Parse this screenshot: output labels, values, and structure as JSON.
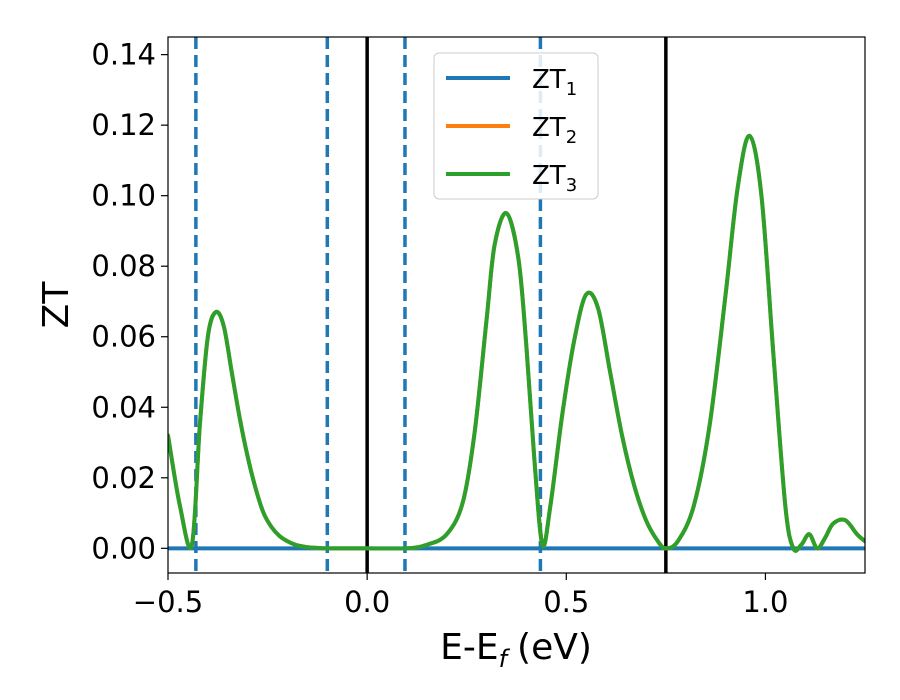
{
  "chart_data": {
    "type": "line",
    "xlabel": "E-E",
    "xlabel_sub": "f",
    "xlabel_unit": "(eV)",
    "ylabel": "ZT",
    "xlim": [
      -0.5,
      1.25
    ],
    "ylim": [
      -0.007,
      0.145
    ],
    "x_ticks": [
      -0.5,
      0.0,
      0.5,
      1.0
    ],
    "x_tick_labels": [
      "−0.5",
      "0.0",
      "0.5",
      "1.0"
    ],
    "y_ticks": [
      0.0,
      0.02,
      0.04,
      0.06,
      0.08,
      0.1,
      0.12,
      0.14
    ],
    "y_tick_labels": [
      "0.00",
      "0.02",
      "0.04",
      "0.06",
      "0.08",
      "0.10",
      "0.12",
      "0.14"
    ],
    "grid": false,
    "legend_position": "top-center",
    "series": [
      {
        "name": "ZT",
        "name_sub": "1",
        "color": "#1f77b4",
        "x": [
          -0.5,
          1.25
        ],
        "y": [
          0.0,
          0.0
        ]
      },
      {
        "name": "ZT",
        "name_sub": "2",
        "color": "#ff7f0e",
        "x": [
          -0.5,
          -0.47,
          -0.44,
          -0.42,
          -0.4,
          -0.38,
          -0.36,
          -0.34,
          -0.32,
          -0.3,
          -0.28,
          -0.26,
          -0.24,
          -0.22,
          -0.2,
          -0.18,
          -0.16,
          -0.14,
          -0.12,
          -0.1,
          0.0,
          0.1,
          0.15,
          0.2,
          0.24,
          0.27,
          0.3,
          0.32,
          0.35,
          0.38,
          0.4,
          0.42,
          0.44,
          0.46,
          0.49,
          0.52,
          0.55,
          0.58,
          0.61,
          0.64,
          0.67,
          0.7,
          0.73,
          0.75,
          0.78,
          0.82,
          0.86,
          0.9,
          0.93,
          0.96,
          0.99,
          1.02,
          1.05,
          1.07,
          1.09,
          1.11,
          1.13,
          1.15,
          1.17,
          1.2,
          1.23,
          1.25
        ],
        "y": [
          0.032,
          0.012,
          0.001,
          0.035,
          0.06,
          0.067,
          0.063,
          0.05,
          0.037,
          0.026,
          0.017,
          0.01,
          0.006,
          0.0035,
          0.002,
          0.001,
          0.0005,
          0.0002,
          0.0001,
          0.0,
          0.0,
          0.0,
          0.001,
          0.004,
          0.013,
          0.033,
          0.065,
          0.086,
          0.095,
          0.082,
          0.057,
          0.025,
          0.001,
          0.012,
          0.038,
          0.059,
          0.072,
          0.068,
          0.05,
          0.032,
          0.018,
          0.008,
          0.002,
          0.0,
          0.002,
          0.012,
          0.035,
          0.072,
          0.102,
          0.117,
          0.1,
          0.055,
          0.012,
          0.0,
          0.001,
          0.004,
          0.0,
          0.003,
          0.007,
          0.008,
          0.004,
          0.002
        ]
      },
      {
        "name": "ZT",
        "name_sub": "3",
        "color": "#2ca02c",
        "x": [
          -0.5,
          -0.47,
          -0.44,
          -0.42,
          -0.4,
          -0.38,
          -0.36,
          -0.34,
          -0.32,
          -0.3,
          -0.28,
          -0.26,
          -0.24,
          -0.22,
          -0.2,
          -0.18,
          -0.16,
          -0.14,
          -0.12,
          -0.1,
          0.0,
          0.1,
          0.15,
          0.2,
          0.24,
          0.27,
          0.3,
          0.32,
          0.35,
          0.38,
          0.4,
          0.42,
          0.44,
          0.46,
          0.49,
          0.52,
          0.55,
          0.58,
          0.61,
          0.64,
          0.67,
          0.7,
          0.73,
          0.75,
          0.78,
          0.82,
          0.86,
          0.9,
          0.93,
          0.96,
          0.99,
          1.02,
          1.05,
          1.07,
          1.09,
          1.11,
          1.13,
          1.15,
          1.17,
          1.2,
          1.23,
          1.25
        ],
        "y": [
          0.032,
          0.012,
          0.001,
          0.035,
          0.06,
          0.067,
          0.063,
          0.05,
          0.037,
          0.026,
          0.017,
          0.01,
          0.006,
          0.0035,
          0.002,
          0.001,
          0.0005,
          0.0002,
          0.0001,
          0.0,
          0.0,
          0.0,
          0.001,
          0.004,
          0.013,
          0.033,
          0.065,
          0.086,
          0.095,
          0.082,
          0.057,
          0.025,
          0.001,
          0.012,
          0.038,
          0.059,
          0.072,
          0.068,
          0.05,
          0.032,
          0.018,
          0.008,
          0.002,
          0.0,
          0.002,
          0.012,
          0.035,
          0.072,
          0.102,
          0.117,
          0.1,
          0.055,
          0.012,
          0.0,
          0.001,
          0.004,
          0.0,
          0.003,
          0.007,
          0.008,
          0.004,
          0.002
        ]
      }
    ],
    "vlines": [
      {
        "x": -0.43,
        "style": "dashed",
        "color": "#1f77b4"
      },
      {
        "x": -0.1,
        "style": "dashed",
        "color": "#1f77b4"
      },
      {
        "x": 0.0,
        "style": "solid",
        "color": "#000000"
      },
      {
        "x": 0.095,
        "style": "dashed",
        "color": "#1f77b4"
      },
      {
        "x": 0.435,
        "style": "dashed",
        "color": "#1f77b4"
      },
      {
        "x": 0.75,
        "style": "solid",
        "color": "#000000"
      }
    ]
  }
}
